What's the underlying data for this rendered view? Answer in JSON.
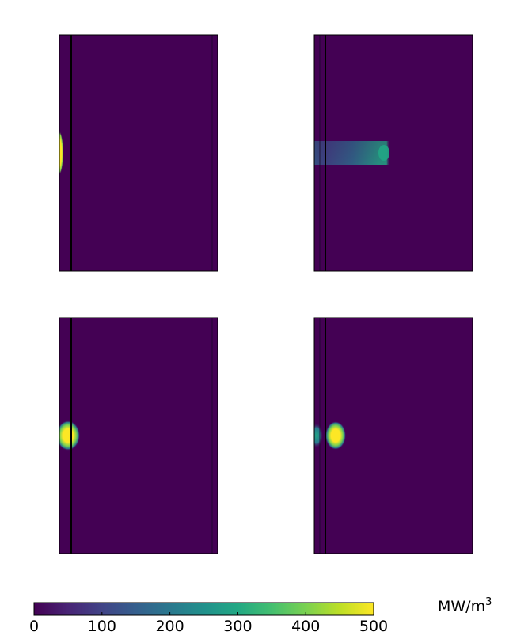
{
  "chart_data": {
    "type": "heatmap",
    "colormap": "viridis",
    "colors": {
      "low": "#440154",
      "high": "#fde725",
      "divider": "#000000"
    },
    "panels": [
      {
        "id": "top-left",
        "row": 1,
        "col": 1,
        "hotspots": [
          {
            "shape": "edge-blob",
            "value": 500
          }
        ]
      },
      {
        "id": "top-right",
        "row": 1,
        "col": 2,
        "hotspots": [
          {
            "shape": "streak",
            "value": 280
          }
        ]
      },
      {
        "id": "bottom-left",
        "row": 2,
        "col": 1,
        "hotspots": [
          {
            "shape": "blob",
            "value": 500
          }
        ]
      },
      {
        "id": "bottom-right",
        "row": 2,
        "col": 2,
        "hotspots": [
          {
            "shape": "blob",
            "value": 500
          },
          {
            "shape": "edge-glow",
            "value": 300
          }
        ]
      }
    ],
    "colorbar": {
      "min": 0,
      "max": 500,
      "ticks": [
        "0",
        "100",
        "200",
        "300",
        "400",
        "500"
      ],
      "units_base": "MW/m",
      "units_exponent": "3",
      "orientation": "horizontal",
      "placement": "bottom"
    }
  }
}
